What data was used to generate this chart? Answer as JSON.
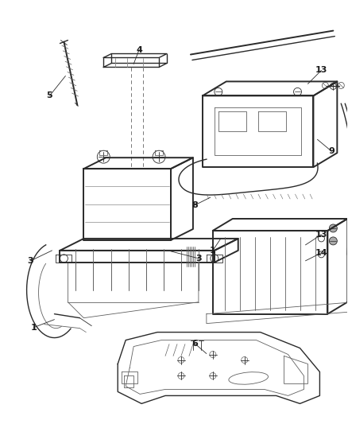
{
  "bg_color": "#f5f5f5",
  "line_color": "#5a5a5a",
  "dark_line": "#2a2a2a",
  "label_color": "#1a1a1a",
  "fig_width": 4.38,
  "fig_height": 5.33,
  "dpi": 100
}
